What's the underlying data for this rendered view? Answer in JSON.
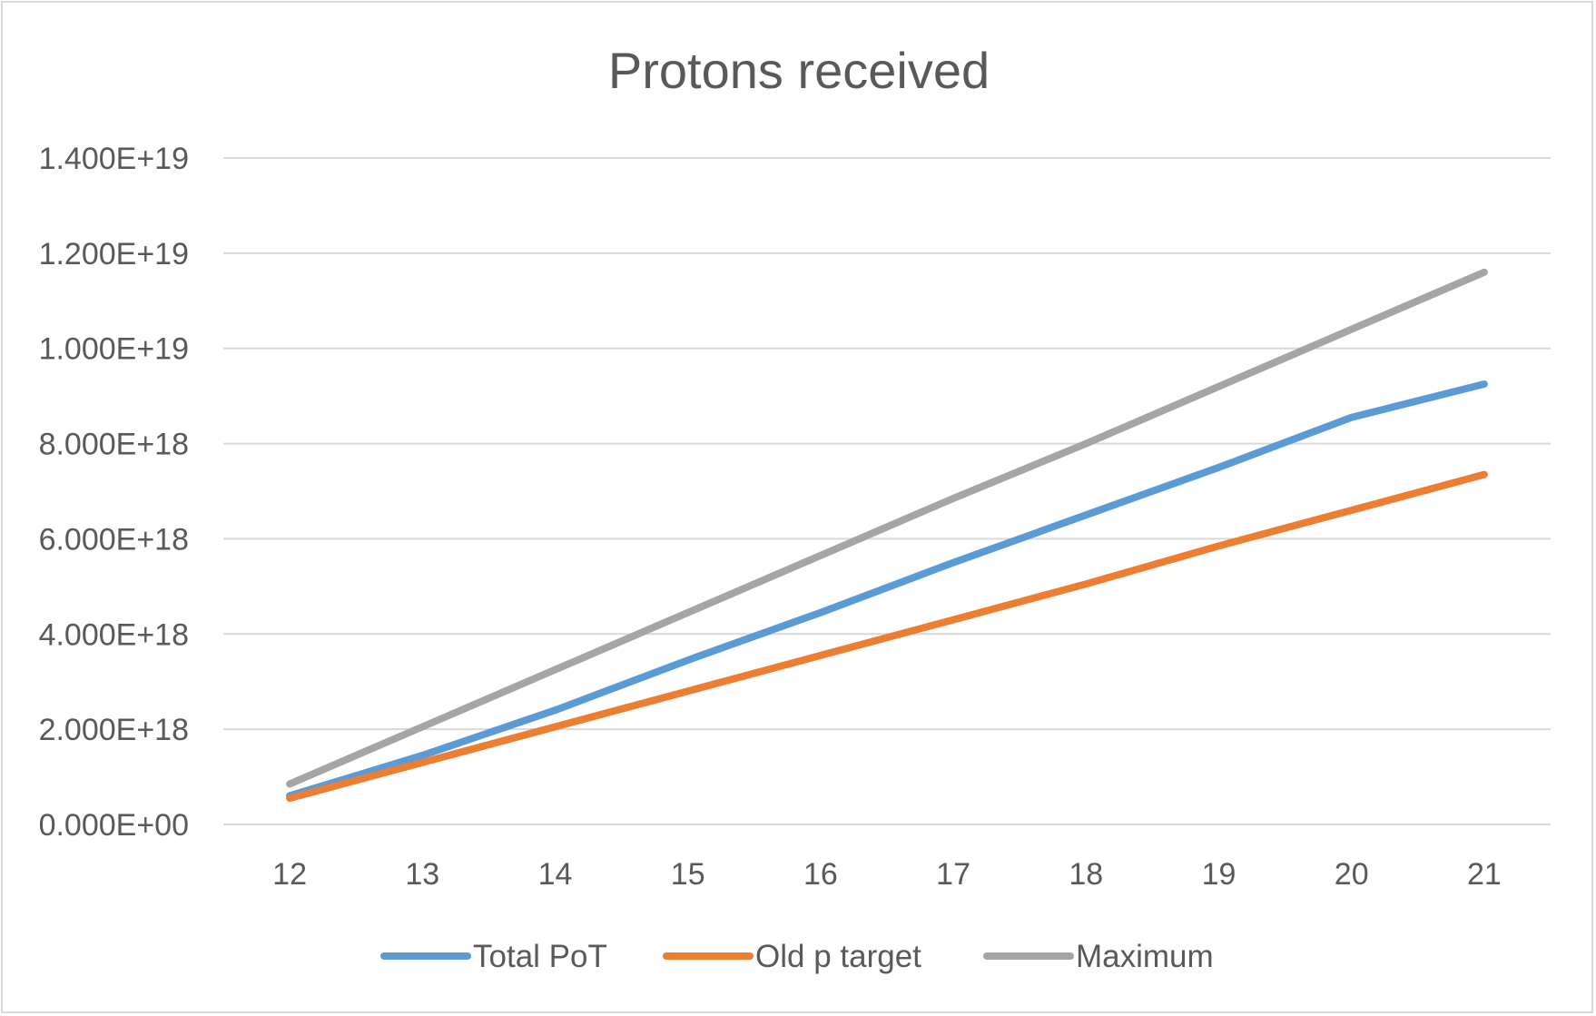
{
  "chart_data": {
    "type": "line",
    "title": "Protons received",
    "xlabel": "",
    "ylabel": "",
    "x": [
      12,
      13,
      14,
      15,
      16,
      17,
      18,
      19,
      20,
      21
    ],
    "x_tick_labels": [
      "12",
      "13",
      "14",
      "15",
      "16",
      "17",
      "18",
      "19",
      "20",
      "21"
    ],
    "ylim": [
      0,
      1.4e+19
    ],
    "y_ticks": [
      0,
      2e+18,
      4e+18,
      6e+18,
      8e+18,
      1e+19,
      1.2e+19,
      1.4e+19
    ],
    "y_tick_labels": [
      "0.000E+00",
      "2.000E+18",
      "4.000E+18",
      "6.000E+18",
      "8.000E+18",
      "1.000E+19",
      "1.200E+19",
      "1.400E+19"
    ],
    "grid": true,
    "legend_position": "bottom",
    "series": [
      {
        "name": "Total PoT",
        "color": "#5b9bd5",
        "values": [
          6e+17,
          1.45e+18,
          2.4e+18,
          3.45e+18,
          4.45e+18,
          5.5e+18,
          6.5e+18,
          7.5e+18,
          8.55e+18,
          9.25e+18
        ]
      },
      {
        "name": "Old p target",
        "color": "#ed7d31",
        "values": [
          5.5e+17,
          1.3e+18,
          2.05e+18,
          2.8e+18,
          3.55e+18,
          4.3e+18,
          5.05e+18,
          5.85e+18,
          6.6e+18,
          7.35e+18
        ]
      },
      {
        "name": "Maximum",
        "color": "#a5a5a5",
        "values": [
          8.5e+17,
          2.05e+18,
          3.25e+18,
          4.45e+18,
          5.65e+18,
          6.85e+18,
          8e+18,
          9.2e+18,
          1.04e+19,
          1.16e+19
        ]
      }
    ]
  }
}
